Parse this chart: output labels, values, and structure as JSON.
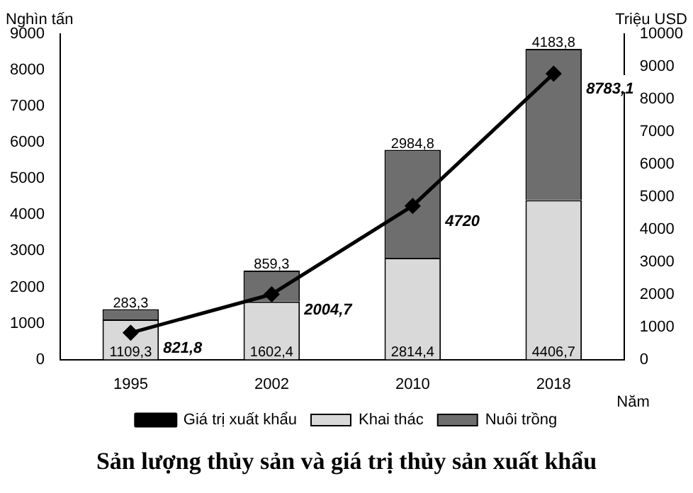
{
  "chart_data": {
    "type": "bar",
    "title": "Sản lượng thủy sản và giá trị thủy sản xuất khẩu",
    "ylabel": "Nghìn tấn",
    "y2label": "Triệu USD",
    "xlabel": "Năm",
    "categories": [
      "1995",
      "2002",
      "2010",
      "2018"
    ],
    "series": [
      {
        "name": "Khai thác",
        "color": "#d9d9d9",
        "values": [
          1109.3,
          1602.4,
          2814.4,
          4406.7
        ],
        "value_labels": [
          "1109,3",
          "1602,4",
          "2814,4",
          "4406,7"
        ]
      },
      {
        "name": "Nuôi trồng",
        "color": "#6e6e6e",
        "values": [
          283.3,
          859.3,
          2984.8,
          4183.8
        ],
        "value_labels": [
          "283,3",
          "859,3",
          "2984,8",
          "4183,8"
        ]
      },
      {
        "name": "Giá trị xuất khẩu",
        "type": "line",
        "axis": "y2",
        "color": "#000000",
        "values": [
          821.8,
          2004.7,
          4720,
          8783.1
        ],
        "value_labels": [
          "821,8",
          "2004,7",
          "4720",
          "8783,1"
        ]
      }
    ],
    "stacked": true,
    "ylim": [
      0,
      9000
    ],
    "yticks": [
      0,
      1000,
      2000,
      3000,
      4000,
      5000,
      6000,
      7000,
      8000,
      9000
    ],
    "y2lim": [
      0,
      10000
    ],
    "y2ticks": [
      0,
      1000,
      2000,
      3000,
      4000,
      5000,
      6000,
      7000,
      8000,
      9000,
      10000
    ],
    "legend": "bottom",
    "marker": "diamond",
    "line_style": "solid",
    "grid": false
  }
}
